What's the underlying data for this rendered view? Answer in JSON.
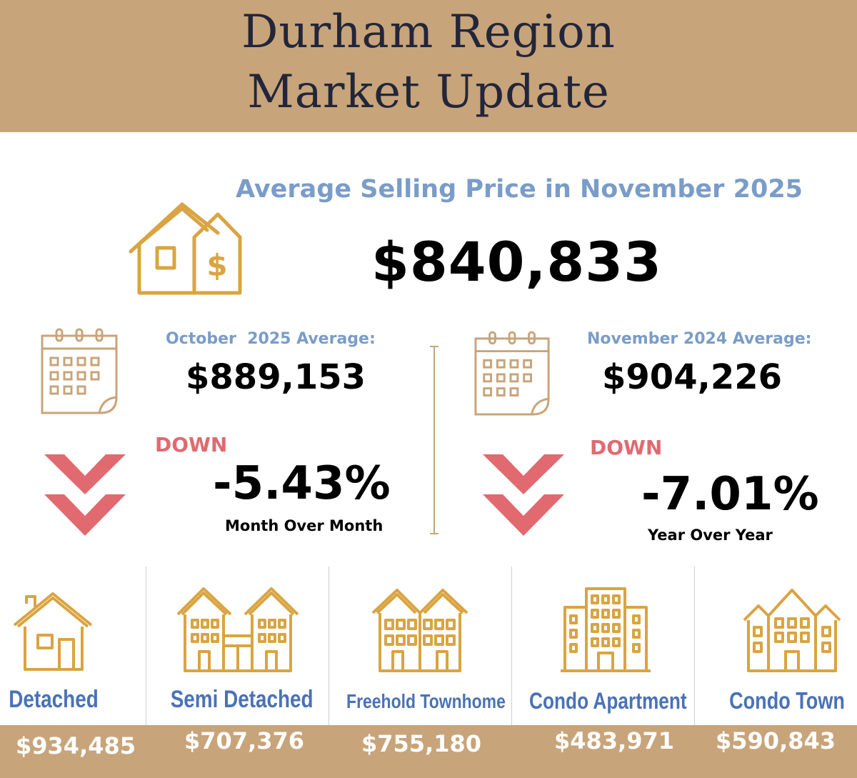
{
  "header": {
    "title_line1": "Durham Region",
    "title_line2": "Market Update"
  },
  "average": {
    "heading": "Average Selling Price in November 2025",
    "price": "$840,833"
  },
  "month_over_month": {
    "label": "October  2025 Average:",
    "value": "$889,153",
    "direction": "DOWN",
    "change": "-5.43%",
    "caption": "Month Over Month"
  },
  "year_over_year": {
    "label": "November 2024 Average:",
    "value": "$904,226",
    "direction": "DOWN",
    "change": "-7.01%",
    "caption": "Year Over Year"
  },
  "property_types": [
    {
      "name": "Detached",
      "price": "$934,485",
      "icon": "detached-house-icon"
    },
    {
      "name": "Semi Detached",
      "price": "$707,376",
      "icon": "semi-detached-icon"
    },
    {
      "name": "Freehold Townhome",
      "price": "$755,180",
      "icon": "townhome-icon"
    },
    {
      "name": "Condo Apartment",
      "price": "$483,971",
      "icon": "condo-apartment-icon"
    },
    {
      "name": "Condo Town",
      "price": "$590,843",
      "icon": "condo-town-icon"
    }
  ],
  "colors": {
    "gold": "#c8a47a",
    "icon_gold": "#d9a441",
    "blue": "#7a9cc8",
    "type_blue": "#4a72b6",
    "red": "#e06a70",
    "navy": "#22263a"
  }
}
